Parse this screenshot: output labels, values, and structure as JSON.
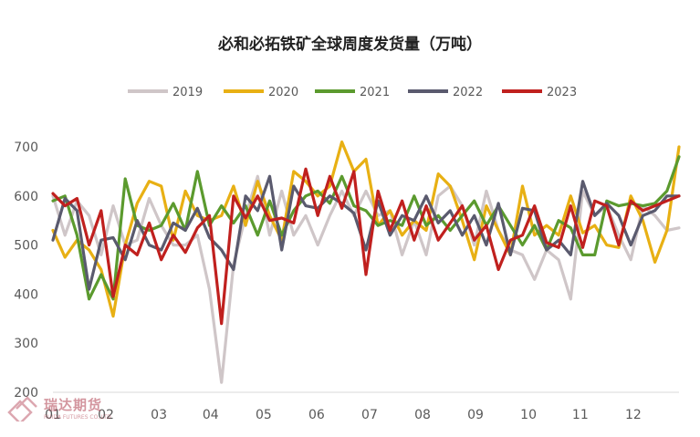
{
  "chart_data": {
    "type": "line",
    "title": "必和必拓铁矿全球周度发货量（万吨）",
    "xlabel": "",
    "ylabel": "",
    "ylim": [
      200,
      700
    ],
    "yticks": [
      200,
      300,
      400,
      500,
      600,
      700
    ],
    "x_range": [
      1,
      53
    ],
    "xticks": [
      {
        "label": "01",
        "x": 1.0
      },
      {
        "label": "02",
        "x": 5.4
      },
      {
        "label": "03",
        "x": 9.8
      },
      {
        "label": "04",
        "x": 14.1
      },
      {
        "label": "05",
        "x": 18.5
      },
      {
        "label": "06",
        "x": 22.9
      },
      {
        "label": "07",
        "x": 27.3
      },
      {
        "label": "08",
        "x": 31.7
      },
      {
        "label": "09",
        "x": 36.1
      },
      {
        "label": "10",
        "x": 40.5
      },
      {
        "label": "11",
        "x": 44.8
      },
      {
        "label": "12",
        "x": 49.2
      }
    ],
    "grid": false,
    "legend_position": "top",
    "series": [
      {
        "name": "2019",
        "color": "#cfc6c8",
        "values": [
          600,
          520,
          590,
          560,
          480,
          580,
          500,
          510,
          595,
          540,
          500,
          500,
          520,
          410,
          220,
          460,
          560,
          640,
          520,
          610,
          520,
          560,
          500,
          560,
          610,
          560,
          610,
          560,
          570,
          480,
          550,
          480,
          600,
          620,
          580,
          500,
          610,
          530,
          490,
          480,
          430,
          490,
          470,
          390,
          610,
          560,
          580,
          520,
          470,
          580,
          560,
          530,
          535
        ]
      },
      {
        "name": "2020",
        "color": "#e8b014",
        "values": [
          530,
          475,
          510,
          490,
          450,
          355,
          500,
          585,
          630,
          620,
          510,
          610,
          560,
          550,
          560,
          620,
          540,
          630,
          560,
          510,
          650,
          630,
          600,
          620,
          710,
          650,
          675,
          540,
          570,
          520,
          550,
          530,
          645,
          620,
          550,
          470,
          580,
          530,
          480,
          620,
          520,
          540,
          520,
          600,
          525,
          540,
          500,
          495,
          600,
          550,
          465,
          530,
          700
        ]
      },
      {
        "name": "2021",
        "color": "#5b9a2e",
        "values": [
          590,
          600,
          520,
          390,
          440,
          390,
          635,
          540,
          530,
          540,
          585,
          530,
          650,
          540,
          580,
          545,
          580,
          520,
          590,
          520,
          570,
          600,
          610,
          585,
          640,
          580,
          570,
          540,
          550,
          540,
          600,
          540,
          560,
          530,
          560,
          590,
          540,
          580,
          540,
          500,
          540,
          490,
          550,
          535,
          480,
          480,
          590,
          580,
          585,
          580,
          585,
          610,
          680
        ]
      },
      {
        "name": "2022",
        "color": "#5a5a6e",
        "values": [
          510,
          595,
          570,
          410,
          510,
          515,
          470,
          550,
          500,
          490,
          545,
          530,
          575,
          515,
          490,
          450,
          600,
          570,
          640,
          490,
          620,
          580,
          575,
          600,
          585,
          565,
          490,
          590,
          520,
          560,
          550,
          600,
          545,
          570,
          520,
          560,
          500,
          585,
          480,
          575,
          570,
          490,
          510,
          480,
          630,
          560,
          585,
          560,
          500,
          560,
          570,
          600,
          600
        ]
      },
      {
        "name": "2023",
        "color": "#c0201e",
        "values": [
          605,
          580,
          595,
          500,
          570,
          395,
          500,
          480,
          545,
          470,
          520,
          485,
          535,
          560,
          340,
          600,
          555,
          600,
          550,
          555,
          545,
          655,
          560,
          640,
          575,
          650,
          440,
          610,
          530,
          590,
          510,
          580,
          510,
          545,
          580,
          510,
          540,
          450,
          510,
          520,
          580,
          505,
          495,
          580,
          495,
          590,
          580,
          500,
          590,
          570,
          580,
          590,
          600
        ]
      }
    ]
  },
  "watermark": {
    "text": "瑞达期货",
    "subtext": "RUIDA FUTURES CO.,LTD"
  },
  "legend_line_color": "#6e6e6e",
  "axis_color": "#d9d9d9",
  "label_color": "#595959"
}
